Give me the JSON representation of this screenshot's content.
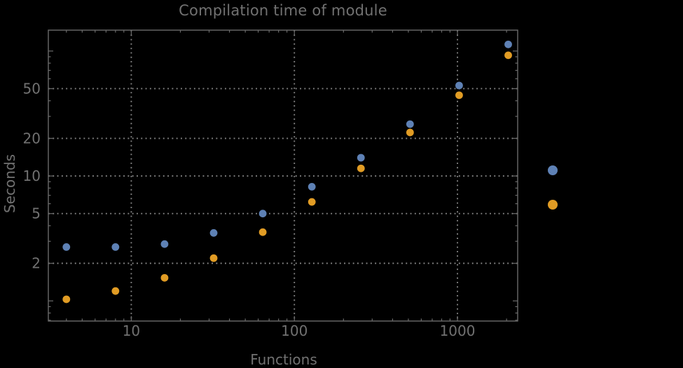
{
  "colors": {
    "background": "#000000",
    "frame": "#6b6b6b",
    "grid": "#828282",
    "text": "#717171",
    "series_blue": "#5E81B5",
    "series_orange": "#E19C24"
  },
  "chart_data": {
    "type": "scatter",
    "title": "Compilation time of module",
    "xlabel": "Functions",
    "ylabel": "Seconds",
    "x_scale": "log",
    "y_scale": "log",
    "xlim": [
      3.1,
      2340
    ],
    "ylim": [
      0.69,
      147
    ],
    "x_tick_labels": [
      10,
      100,
      1000
    ],
    "y_tick_labels": [
      2,
      5,
      10,
      20,
      50
    ],
    "grid": "dotted gridlines at labeled ticks only",
    "x": [
      4,
      8,
      16,
      32,
      64,
      128,
      256,
      512,
      1024,
      2048
    ],
    "series": [
      {
        "name": "blue",
        "color": "#5E81B5",
        "values": [
          2.7,
          2.7,
          2.85,
          3.5,
          5.0,
          8.2,
          14,
          26,
          53,
          113
        ]
      },
      {
        "name": "orange",
        "color": "#E19C24",
        "values": [
          1.03,
          1.2,
          1.53,
          2.2,
          3.55,
          6.2,
          11.5,
          22.3,
          44.3,
          92.5
        ]
      }
    ],
    "legend": {
      "position": "outside-right",
      "labels_visible": false,
      "entries": [
        {
          "name": "blue",
          "color": "#5E81B5"
        },
        {
          "name": "orange",
          "color": "#E19C24"
        }
      ]
    }
  }
}
